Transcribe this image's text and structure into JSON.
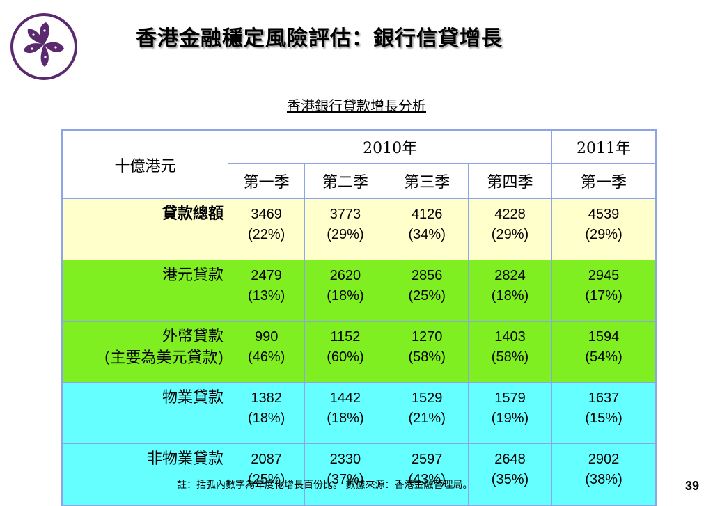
{
  "header": {
    "title": "香港金融穩定風險評估：銀行信貸增長",
    "logo_icon": "bauhinia-flower-icon"
  },
  "table": {
    "caption": "香港銀行貸款增長分析",
    "unit_label": "十億港元",
    "years": [
      {
        "label": "2010年"
      },
      {
        "label": "2011年"
      }
    ],
    "quarters": [
      "第一季",
      "第二季",
      "第三季",
      "第四季",
      "第一季"
    ],
    "rows": [
      {
        "label_line1": "貸款總額",
        "label_line2": "",
        "cells": [
          {
            "value": "3469",
            "growth": "(22%)"
          },
          {
            "value": "3773",
            "growth": "(29%)"
          },
          {
            "value": "4126",
            "growth": "(34%)"
          },
          {
            "value": "4228",
            "growth": "(29%)"
          },
          {
            "value": "4539",
            "growth": "(29%)"
          }
        ]
      },
      {
        "label_line1": "港元貸款",
        "label_line2": "",
        "cells": [
          {
            "value": "2479",
            "growth": "(13%)"
          },
          {
            "value": "2620",
            "growth": "(18%)"
          },
          {
            "value": "2856",
            "growth": "(25%)"
          },
          {
            "value": "2824",
            "growth": "(18%)"
          },
          {
            "value": "2945",
            "growth": "(17%)"
          }
        ]
      },
      {
        "label_line1": "外幣貸款",
        "label_line2": "(主要為美元貸款)",
        "cells": [
          {
            "value": "990",
            "growth": "(46%)"
          },
          {
            "value": "1152",
            "growth": "(60%)"
          },
          {
            "value": "1270",
            "growth": "(58%)"
          },
          {
            "value": "1403",
            "growth": "(58%)"
          },
          {
            "value": "1594",
            "growth": "(54%)"
          }
        ]
      },
      {
        "label_line1": "物業貸款",
        "label_line2": "",
        "cells": [
          {
            "value": "1382",
            "growth": "(18%)"
          },
          {
            "value": "1442",
            "growth": "(18%)"
          },
          {
            "value": "1529",
            "growth": "(21%)"
          },
          {
            "value": "1579",
            "growth": "(19%)"
          },
          {
            "value": "1637",
            "growth": "(15%)"
          }
        ]
      },
      {
        "label_line1": "非物業貸款",
        "label_line2": "",
        "cells": [
          {
            "value": "2087",
            "growth": "(25%)"
          },
          {
            "value": "2330",
            "growth": "(37%)"
          },
          {
            "value": "2597",
            "growth": "(43%)"
          },
          {
            "value": "2648",
            "growth": "(35%)"
          },
          {
            "value": "2902",
            "growth": "(38%)"
          }
        ]
      }
    ]
  },
  "footer": {
    "note": "註：括弧內數字為年度化增長百份比。   數據來源：香港金融管理局。",
    "page_number": "39"
  },
  "colors": {
    "accent_purple": "#5b2a6e",
    "total_row_bg": "#ffffcc",
    "hkd_fx_rows_bg": "#7fef22",
    "property_rows_bg": "#66ffff",
    "border": "#8da4e8"
  }
}
